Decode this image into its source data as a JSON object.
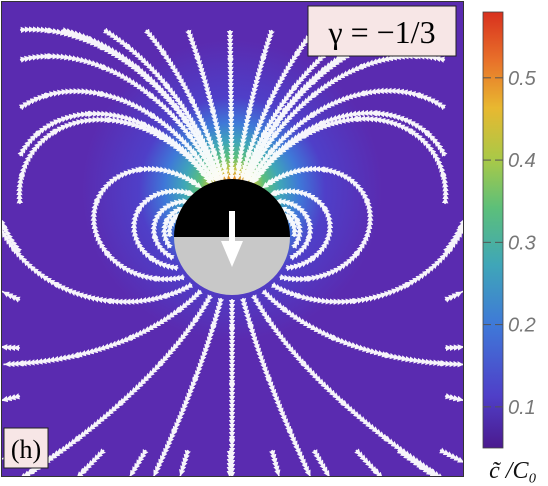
{
  "chart_data": {
    "type": "heatmap",
    "title": "",
    "panel_label": "(h)",
    "parameter_label": "γ = −1/3",
    "colorbar": {
      "label": "c̃ /C₀",
      "ticks": [
        {
          "value": 0.1,
          "label": "0.1"
        },
        {
          "value": 0.2,
          "label": "0.2"
        },
        {
          "value": 0.3,
          "label": "0.3"
        },
        {
          "value": 0.4,
          "label": "0.4"
        },
        {
          "value": 0.5,
          "label": "0.5"
        }
      ],
      "range": [
        0.05,
        0.58
      ]
    },
    "field": {
      "background_value": 0.05,
      "peak_value": 0.57,
      "peak_location": "front (top) of particle",
      "particle": {
        "top_half_color": "#000000",
        "bottom_half_color": "#c8c8c8",
        "arrow_direction": "down"
      }
    },
    "streamlines": {
      "color": "#ffffff",
      "description": "flow field lines around the particle"
    },
    "colors": {
      "colormap": [
        "#4b1a8e",
        "#4f3fc8",
        "#3f78d8",
        "#3fa6b8",
        "#5cbf7a",
        "#a8c948",
        "#e8b830",
        "#e8702a",
        "#d8301e"
      ]
    }
  }
}
